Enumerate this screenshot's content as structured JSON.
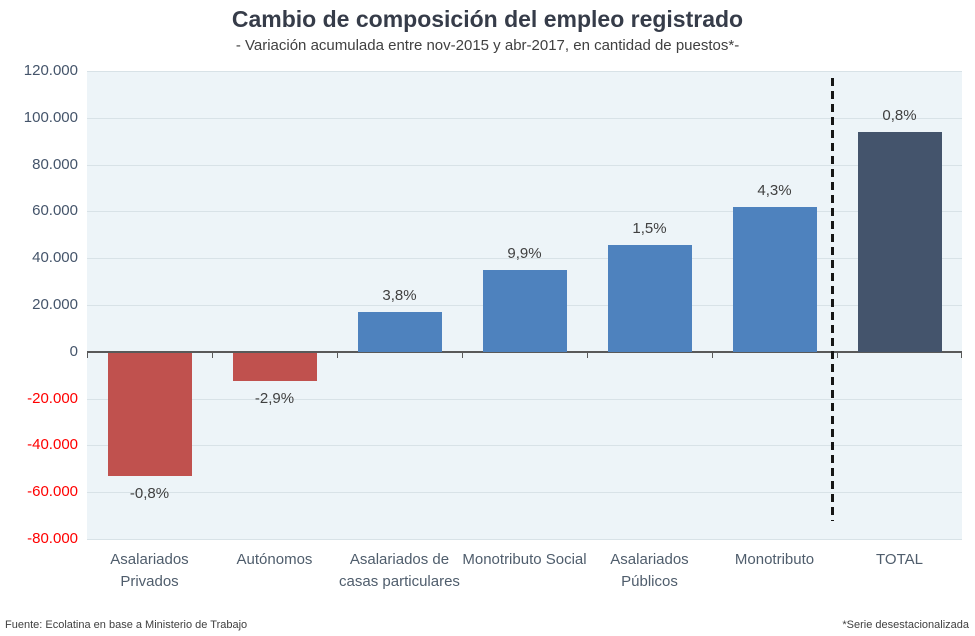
{
  "chart_data": {
    "type": "bar",
    "title": "Cambio de composición del empleo registrado",
    "subtitle": "- Variación acumulada entre nov-2015 y abr-2017, en cantidad de puestos*-",
    "categories": [
      "Asalariados Privados",
      "Autónomos",
      "Asalariados de casas particulares",
      "Monotributo Social",
      "Asalariados Públicos",
      "Monotributo",
      "TOTAL"
    ],
    "values": [
      -53000,
      -12500,
      17000,
      35000,
      45500,
      62000,
      94000
    ],
    "bar_labels": [
      "-0,8%",
      "-2,9%",
      "3,8%",
      "9,9%",
      "1,5%",
      "4,3%",
      "0,8%"
    ],
    "bar_colors": [
      "#C0514E",
      "#C0514E",
      "#4E82BE",
      "#4E82BE",
      "#4E82BE",
      "#4E82BE",
      "#44546C"
    ],
    "xlabel": "",
    "ylabel": "",
    "ylim": [
      -80000,
      120000
    ],
    "grid": true,
    "legend": false,
    "separator_before_index": 6,
    "y_ticks": [
      {
        "value": 120000,
        "label": "120.000"
      },
      {
        "value": 100000,
        "label": "100.000"
      },
      {
        "value": 80000,
        "label": "80.000"
      },
      {
        "value": 60000,
        "label": "60.000"
      },
      {
        "value": 40000,
        "label": "40.000"
      },
      {
        "value": 20000,
        "label": "20.000"
      },
      {
        "value": 0,
        "label": "0"
      },
      {
        "value": -20000,
        "label": "-20.000"
      },
      {
        "value": -40000,
        "label": "-40.000"
      },
      {
        "value": -60000,
        "label": "-60.000"
      },
      {
        "value": -80000,
        "label": "-80.000"
      }
    ],
    "colors": {
      "negative_bar": "#C0514E",
      "positive_bar": "#4E82BE",
      "total_bar": "#44546C",
      "plot_background": "#EDF4F8",
      "gridline": "#D8E2E7",
      "axis": "#595959",
      "tick_label_positive": "#44546A",
      "tick_label_negative": "#FF0000",
      "data_label": "#404040",
      "category_label": "#4F5D6C",
      "separator_line": "#161616"
    },
    "source": "Fuente: Ecolatina en base a Ministerio de Trabajo",
    "footnote": "*Serie desestacionalizada"
  }
}
